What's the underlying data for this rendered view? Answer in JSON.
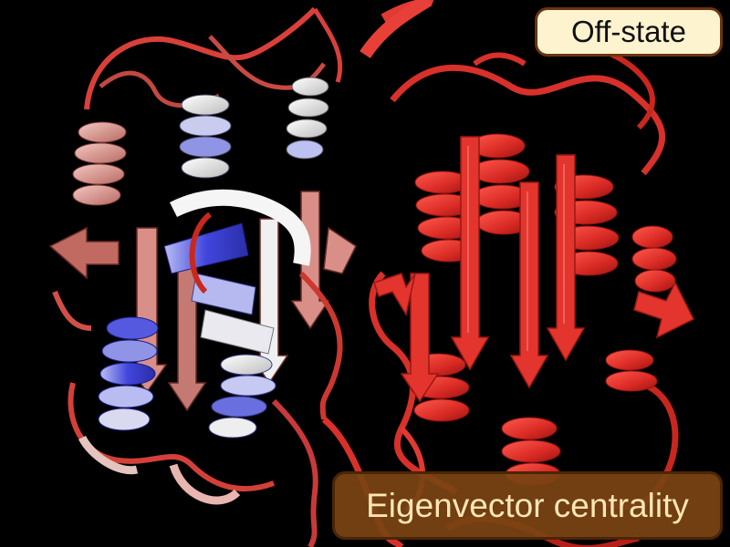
{
  "labels": {
    "state": "Off-state",
    "metric": "Eigenvector centrality"
  },
  "colors": {
    "background": "#000000",
    "high_centrality": "#e8332c",
    "low_centrality": "#3a3ed8",
    "mid_centrality": "#f2f2f2",
    "badge_light_fill": "#fdf3cf",
    "badge_dark_fill": "#7a4412",
    "badge_text_light": "#fde6b6"
  },
  "legend_scale": [
    "low",
    "mid",
    "high"
  ]
}
